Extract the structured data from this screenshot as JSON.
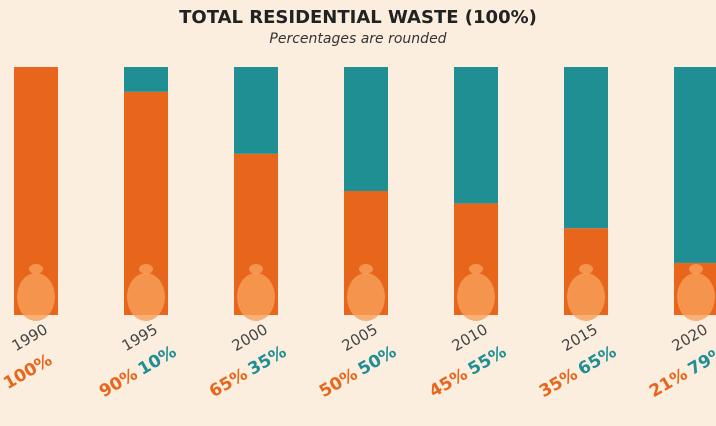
{
  "chart_data": {
    "type": "stacked_bar",
    "title": "TOTAL RESIDENTIAL WASTE (100%)",
    "subtitle": "Percentages are rounded",
    "categories": [
      "1990",
      "1995",
      "2000",
      "2005",
      "2010",
      "2015",
      "2020"
    ],
    "series": [
      {
        "color": "#e8661c",
        "values": [
          100,
          90,
          65,
          50,
          45,
          35,
          21
        ],
        "value_labels": [
          "100%",
          "90%",
          "65%",
          "50%",
          "45%",
          "35%",
          "21%"
        ]
      },
      {
        "color": "#1f8f94",
        "values": [
          0,
          10,
          35,
          50,
          55,
          65,
          79
        ],
        "value_labels": [
          null,
          "10%",
          "35%",
          "50%",
          "55%",
          "65%",
          "79%"
        ]
      }
    ],
    "ylim": [
      0,
      100
    ]
  }
}
